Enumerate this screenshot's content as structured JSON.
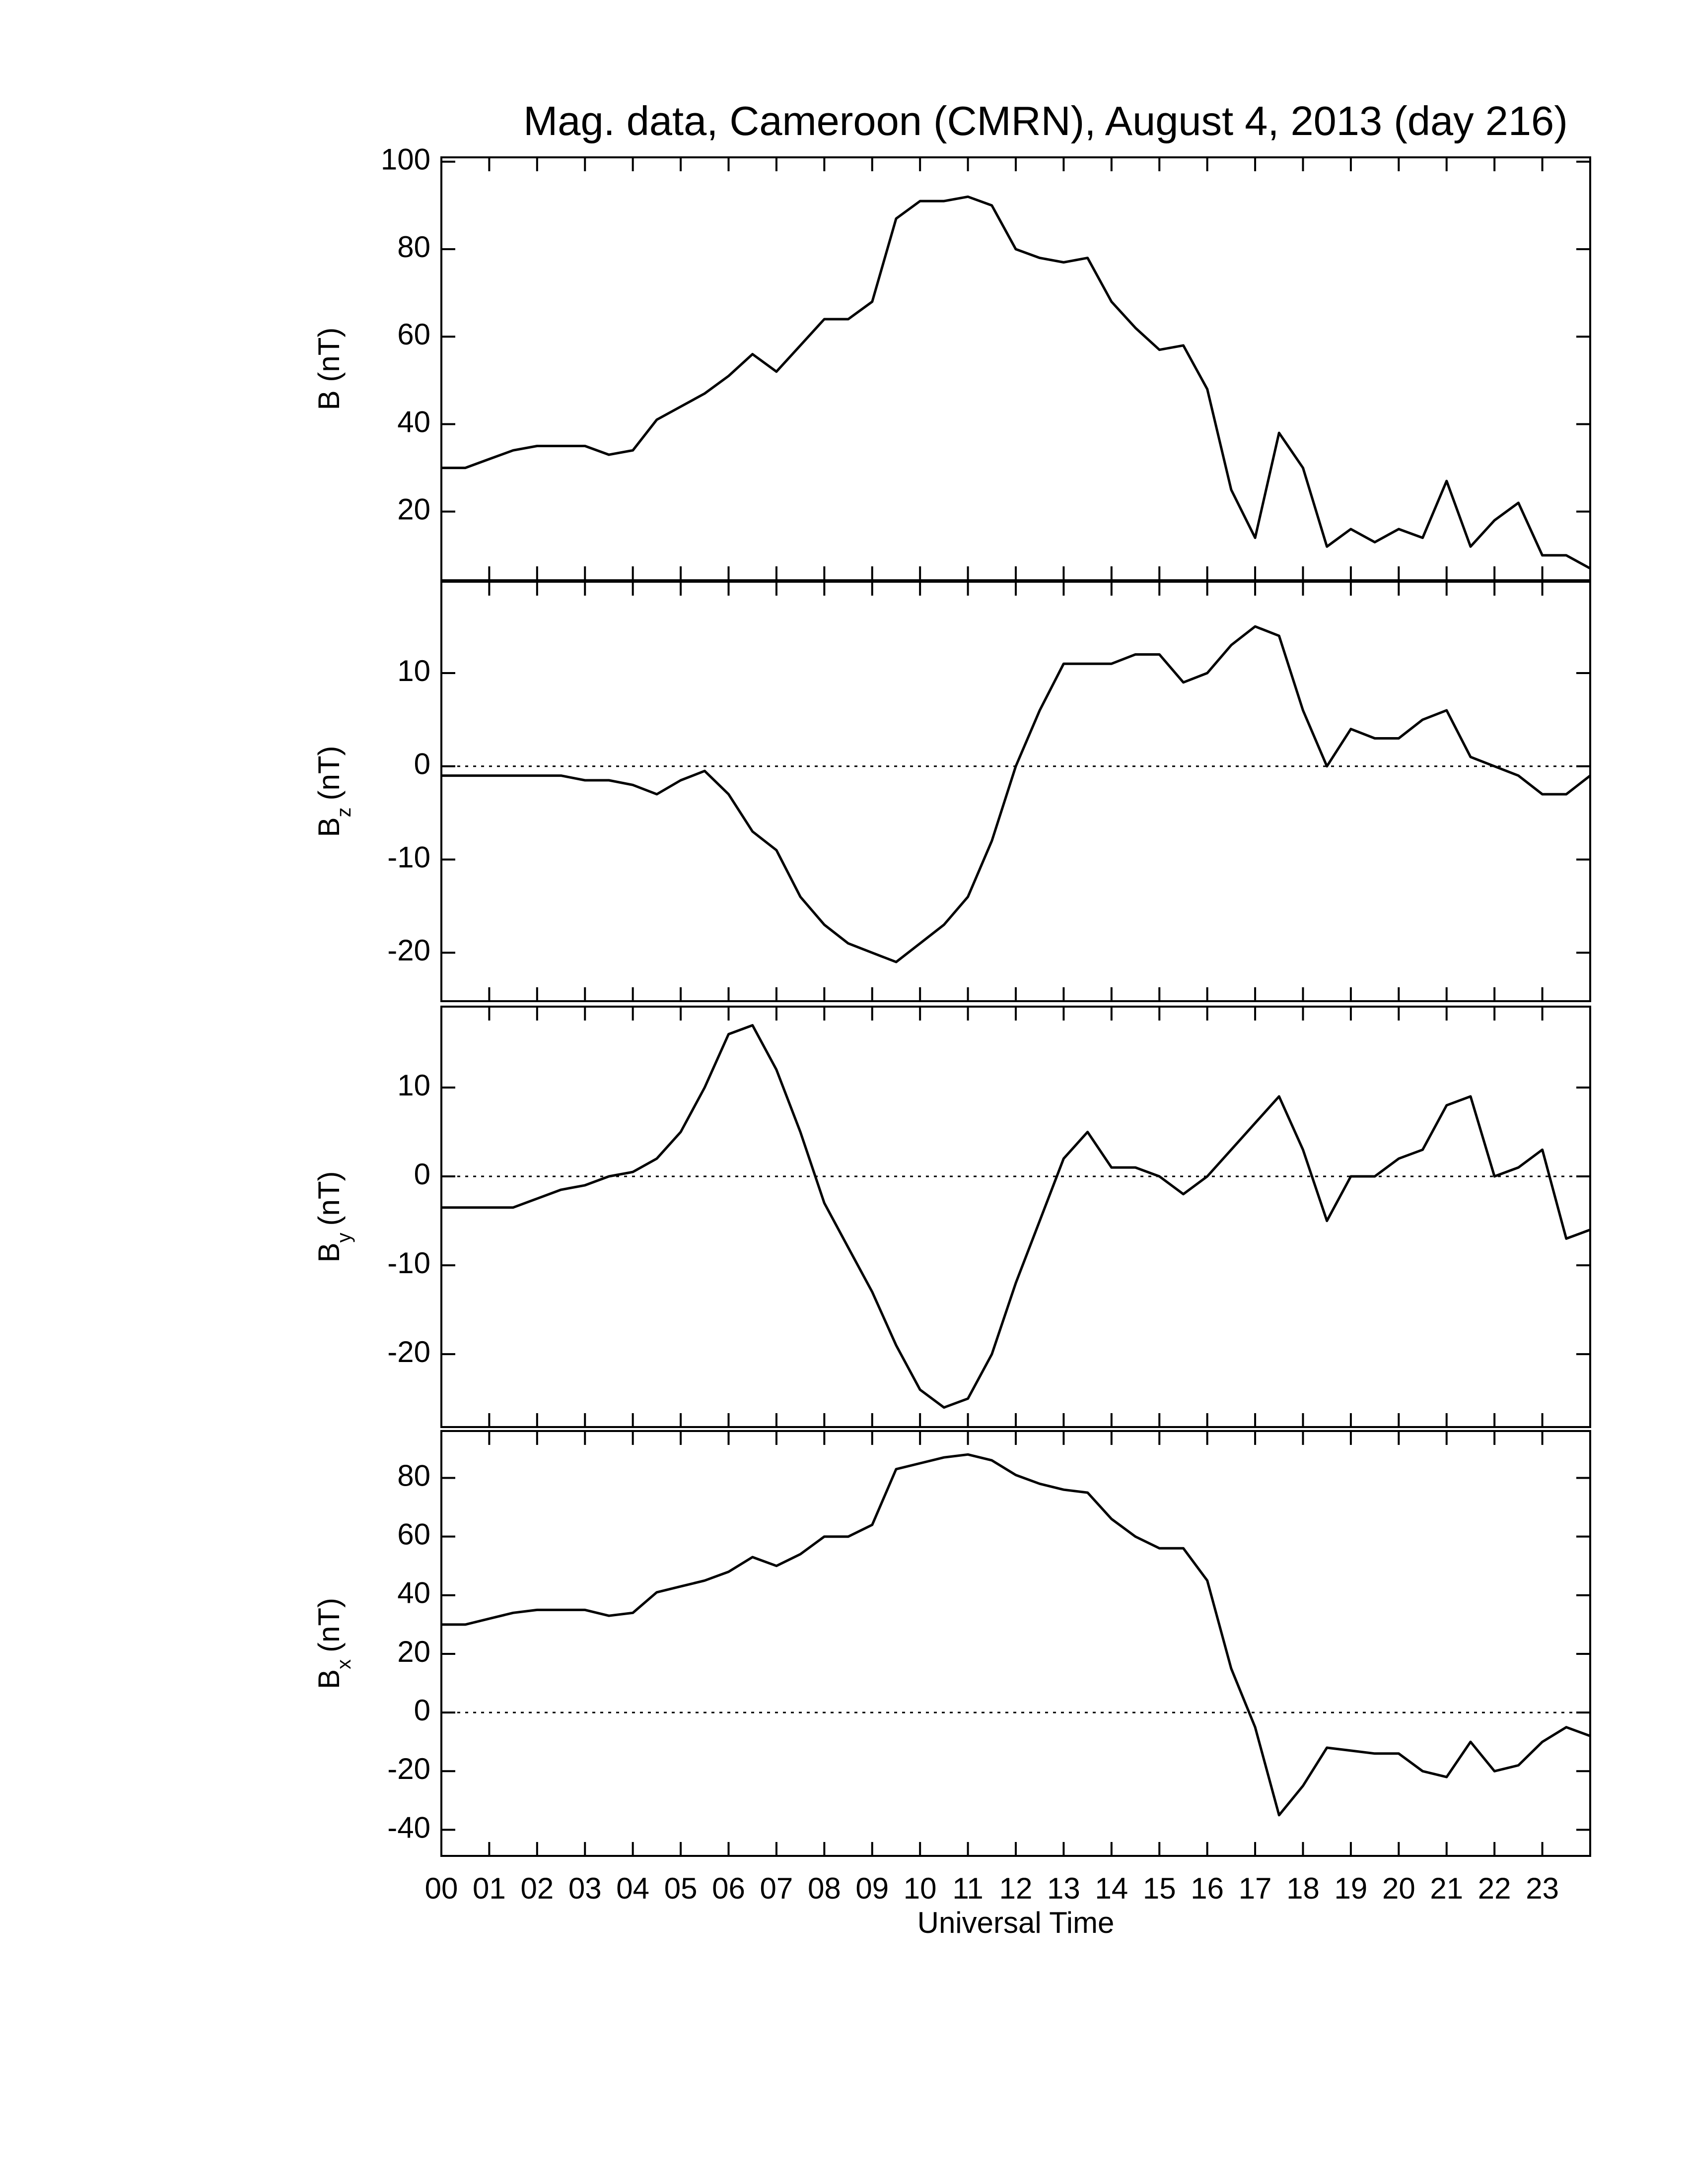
{
  "chart_data": [
    {
      "type": "line",
      "title": "Mag. data, Cameroon (CMRN), August 4, 2013 (day 216)",
      "ylabel": "B (nT)",
      "xlim": [
        0,
        24
      ],
      "ylim": [
        4.3,
        101
      ],
      "yticks": [
        20,
        40,
        60,
        80,
        100
      ],
      "series": [
        {
          "color": "#000000",
          "x": [
            0,
            0.5,
            1,
            1.5,
            2,
            2.5,
            3,
            3.5,
            4,
            4.5,
            5,
            5.5,
            6,
            6.5,
            7,
            7.5,
            8,
            8.5,
            9,
            9.5,
            10,
            10.5,
            11,
            11.5,
            12,
            12.5,
            13,
            13.5,
            14,
            14.5,
            15,
            15.5,
            16,
            16.5,
            17,
            17.5,
            18,
            18.5,
            19,
            19.5,
            20,
            20.5,
            21,
            21.5,
            22,
            22.5,
            23,
            23.5,
            24
          ],
          "values": [
            30,
            30,
            32,
            34,
            35,
            35,
            35,
            33,
            34,
            41,
            44,
            47,
            51,
            56,
            52,
            58,
            64,
            64,
            68,
            87,
            91,
            91,
            92,
            90,
            80,
            78,
            77,
            78,
            68,
            62,
            57,
            58,
            48,
            25,
            14,
            38,
            30,
            12,
            16,
            13,
            16,
            14,
            27,
            12,
            18,
            22,
            10,
            10,
            7
          ]
        }
      ]
    },
    {
      "type": "line",
      "ylabel": {
        "main": "B",
        "sub": "z",
        "unit": "(nT)"
      },
      "xlim": [
        0,
        24
      ],
      "ylim": [
        -25.2,
        19.8
      ],
      "yticks": [
        -20,
        -10,
        0,
        10
      ],
      "reference_line": 0,
      "series": [
        {
          "color": "#000000",
          "x": [
            0,
            0.5,
            1,
            1.5,
            2,
            2.5,
            3,
            3.5,
            4,
            4.5,
            5,
            5.5,
            6,
            6.5,
            7,
            7.5,
            8,
            8.5,
            9,
            9.5,
            10,
            10.5,
            11,
            11.5,
            12,
            12.5,
            13,
            13.5,
            14,
            14.5,
            15,
            15.5,
            16,
            16.5,
            17,
            17.5,
            18,
            18.5,
            19,
            19.5,
            20,
            20.5,
            21,
            21.5,
            22,
            22.5,
            23,
            23.5,
            24
          ],
          "values": [
            -1,
            -1,
            -1,
            -1,
            -1,
            -1,
            -1.5,
            -1.5,
            -2,
            -3,
            -1.5,
            -0.5,
            -3,
            -7,
            -9,
            -14,
            -17,
            -19,
            -20,
            -21,
            -19,
            -17,
            -14,
            -8,
            0,
            6,
            11,
            11,
            11,
            12,
            12,
            9,
            10,
            13,
            15,
            14,
            6,
            0,
            4,
            3,
            3,
            5,
            6,
            1,
            0,
            -1,
            -3,
            -3,
            -1
          ]
        }
      ]
    },
    {
      "type": "line",
      "ylabel": {
        "main": "B",
        "sub": "y",
        "unit": "(nT)"
      },
      "xlim": [
        0,
        24
      ],
      "ylim": [
        -28.2,
        19.1
      ],
      "yticks": [
        -20,
        -10,
        0,
        10
      ],
      "reference_line": 0,
      "series": [
        {
          "color": "#000000",
          "x": [
            0,
            0.5,
            1,
            1.5,
            2,
            2.5,
            3,
            3.5,
            4,
            4.5,
            5,
            5.5,
            6,
            6.5,
            7,
            7.5,
            8,
            8.5,
            9,
            9.5,
            10,
            10.5,
            11,
            11.5,
            12,
            12.5,
            13,
            13.5,
            14,
            14.5,
            15,
            15.5,
            16,
            16.5,
            17,
            17.5,
            18,
            18.5,
            19,
            19.5,
            20,
            20.5,
            21,
            21.5,
            22,
            22.5,
            23,
            23.5,
            24
          ],
          "values": [
            -3.5,
            -3.5,
            -3.5,
            -3.5,
            -2.5,
            -1.5,
            -1,
            0,
            0.5,
            2,
            5,
            10,
            16,
            17,
            12,
            5,
            -3,
            -8,
            -13,
            -19,
            -24,
            -26,
            -25,
            -20,
            -12,
            -5,
            2,
            5,
            1,
            1,
            0,
            -2,
            0,
            3,
            6,
            9,
            3,
            -5,
            0,
            0,
            2,
            3,
            8,
            9,
            0,
            1,
            3,
            -7,
            -6
          ]
        }
      ]
    },
    {
      "type": "line",
      "ylabel": {
        "main": "B",
        "sub": "x",
        "unit": "(nT)"
      },
      "xlabel": "Universal Time",
      "xlim": [
        0,
        24
      ],
      "ylim": [
        -48.9,
        96
      ],
      "yticks": [
        -40,
        -20,
        0,
        20,
        40,
        60,
        80
      ],
      "reference_line": 0,
      "xticks": [
        {
          "value": 0,
          "label": "00"
        },
        {
          "value": 1,
          "label": "01"
        },
        {
          "value": 2,
          "label": "02"
        },
        {
          "value": 3,
          "label": "03"
        },
        {
          "value": 4,
          "label": "04"
        },
        {
          "value": 5,
          "label": "05"
        },
        {
          "value": 6,
          "label": "06"
        },
        {
          "value": 7,
          "label": "07"
        },
        {
          "value": 8,
          "label": "08"
        },
        {
          "value": 9,
          "label": "09"
        },
        10,
        11,
        12,
        13,
        14,
        15,
        16,
        17,
        18,
        19,
        20,
        21,
        22,
        23
      ],
      "series": [
        {
          "color": "#000000",
          "x": [
            0,
            0.5,
            1,
            1.5,
            2,
            2.5,
            3,
            3.5,
            4,
            4.5,
            5,
            5.5,
            6,
            6.5,
            7,
            7.5,
            8,
            8.5,
            9,
            9.5,
            10,
            10.5,
            11,
            11.5,
            12,
            12.5,
            13,
            13.5,
            14,
            14.5,
            15,
            15.5,
            16,
            16.5,
            17,
            17.5,
            18,
            18.5,
            19,
            19.5,
            20,
            20.5,
            21,
            21.5,
            22,
            22.5,
            23,
            23.5,
            24
          ],
          "values": [
            30,
            30,
            32,
            34,
            35,
            35,
            35,
            33,
            34,
            41,
            43,
            45,
            48,
            53,
            50,
            54,
            60,
            60,
            64,
            83,
            85,
            87,
            88,
            86,
            81,
            78,
            76,
            75,
            66,
            60,
            56,
            56,
            45,
            15,
            -5,
            -35,
            -25,
            -12,
            -13,
            -14,
            -14,
            -20,
            -22,
            -10,
            -20,
            -18,
            -10,
            -5,
            -8
          ]
        }
      ]
    }
  ]
}
